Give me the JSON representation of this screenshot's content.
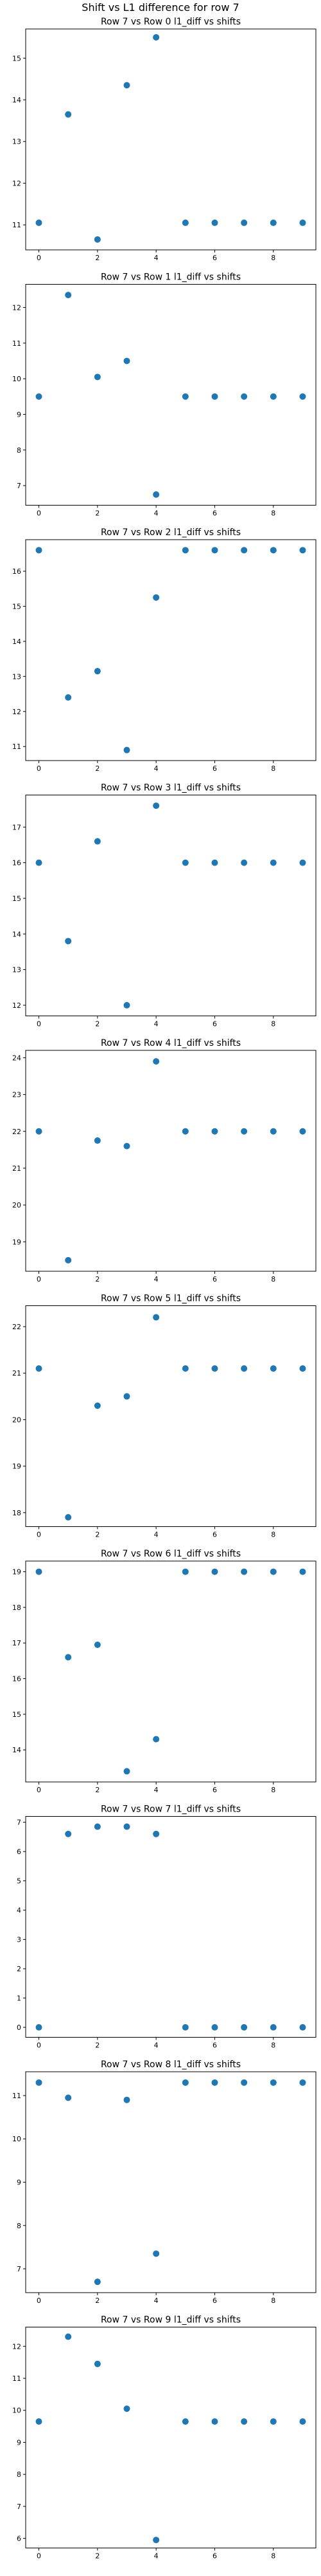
{
  "figure_title": "Shift vs L1 difference for row 7",
  "colors": {
    "point": "#1f77b4",
    "axis": "#000000",
    "background": "#ffffff"
  },
  "chart_data": [
    {
      "type": "scatter",
      "title": "Row 7 vs Row 0 l1_diff vs shifts",
      "x": [
        0,
        1,
        2,
        3,
        4,
        5,
        6,
        7,
        8,
        9
      ],
      "y": [
        11.05,
        13.65,
        10.65,
        14.35,
        15.5,
        11.05,
        11.05,
        11.05,
        11.05,
        11.05
      ],
      "xlim": [
        -0.45,
        9.45
      ],
      "ylim": [
        10.4,
        15.7
      ],
      "xticks": [
        0,
        2,
        4,
        6,
        8
      ],
      "yticks": [
        11,
        12,
        13,
        14,
        15
      ],
      "grid": false
    },
    {
      "type": "scatter",
      "title": "Row 7 vs Row 1 l1_diff vs shifts",
      "x": [
        0,
        1,
        2,
        3,
        4,
        5,
        6,
        7,
        8,
        9
      ],
      "y": [
        9.5,
        12.35,
        10.05,
        10.5,
        6.75,
        9.5,
        9.5,
        9.5,
        9.5,
        9.5
      ],
      "xlim": [
        -0.45,
        9.45
      ],
      "ylim": [
        6.45,
        12.65
      ],
      "xticks": [
        0,
        2,
        4,
        6,
        8
      ],
      "yticks": [
        7,
        8,
        9,
        10,
        11,
        12
      ],
      "grid": false
    },
    {
      "type": "scatter",
      "title": "Row 7 vs Row 2 l1_diff vs shifts",
      "x": [
        0,
        1,
        2,
        3,
        4,
        5,
        6,
        7,
        8,
        9
      ],
      "y": [
        16.6,
        12.4,
        13.15,
        10.9,
        15.25,
        16.6,
        16.6,
        16.6,
        16.6,
        16.6
      ],
      "xlim": [
        -0.45,
        9.45
      ],
      "ylim": [
        10.6,
        16.9
      ],
      "xticks": [
        0,
        2,
        4,
        6,
        8
      ],
      "yticks": [
        11,
        12,
        13,
        14,
        15,
        16
      ],
      "grid": false
    },
    {
      "type": "scatter",
      "title": "Row 7 vs Row 3 l1_diff vs shifts",
      "x": [
        0,
        1,
        2,
        3,
        4,
        5,
        6,
        7,
        8,
        9
      ],
      "y": [
        16.0,
        13.8,
        16.6,
        12.0,
        17.6,
        16.0,
        16.0,
        16.0,
        16.0,
        16.0
      ],
      "xlim": [
        -0.45,
        9.45
      ],
      "ylim": [
        11.7,
        17.9
      ],
      "xticks": [
        0,
        2,
        4,
        6,
        8
      ],
      "yticks": [
        12,
        13,
        14,
        15,
        16,
        17
      ],
      "grid": false
    },
    {
      "type": "scatter",
      "title": "Row 7 vs Row 4 l1_diff vs shifts",
      "x": [
        0,
        1,
        2,
        3,
        4,
        5,
        6,
        7,
        8,
        9
      ],
      "y": [
        22.0,
        18.5,
        21.75,
        21.6,
        23.9,
        22.0,
        22.0,
        22.0,
        22.0,
        22.0
      ],
      "xlim": [
        -0.45,
        9.45
      ],
      "ylim": [
        18.2,
        24.2
      ],
      "xticks": [
        0,
        2,
        4,
        6,
        8
      ],
      "yticks": [
        19,
        20,
        21,
        22,
        23,
        24
      ],
      "grid": false
    },
    {
      "type": "scatter",
      "title": "Row 7 vs Row 5 l1_diff vs shifts",
      "x": [
        0,
        1,
        2,
        3,
        4,
        5,
        6,
        7,
        8,
        9
      ],
      "y": [
        21.1,
        17.9,
        20.3,
        20.5,
        22.2,
        21.1,
        21.1,
        21.1,
        21.1,
        21.1
      ],
      "xlim": [
        -0.45,
        9.45
      ],
      "ylim": [
        17.7,
        22.45
      ],
      "xticks": [
        0,
        2,
        4,
        6,
        8
      ],
      "yticks": [
        18,
        19,
        20,
        21,
        22
      ],
      "grid": false
    },
    {
      "type": "scatter",
      "title": "Row 7 vs Row 6 l1_diff vs shifts",
      "x": [
        0,
        1,
        2,
        3,
        4,
        5,
        6,
        7,
        8,
        9
      ],
      "y": [
        19.0,
        16.6,
        16.95,
        13.4,
        14.3,
        19.0,
        19.0,
        19.0,
        19.0,
        19.0
      ],
      "xlim": [
        -0.45,
        9.45
      ],
      "ylim": [
        13.1,
        19.3
      ],
      "xticks": [
        0,
        2,
        4,
        6,
        8
      ],
      "yticks": [
        14,
        15,
        16,
        17,
        18,
        19
      ],
      "grid": false
    },
    {
      "type": "scatter",
      "title": "Row 7 vs Row 7 l1_diff vs shifts",
      "x": [
        0,
        1,
        2,
        3,
        4,
        5,
        6,
        7,
        8,
        9
      ],
      "y": [
        0.0,
        6.6,
        6.85,
        6.85,
        6.6,
        0.0,
        0.0,
        0.0,
        0.0,
        0.0
      ],
      "xlim": [
        -0.45,
        9.45
      ],
      "ylim": [
        -0.34,
        7.2
      ],
      "xticks": [
        0,
        2,
        4,
        6,
        8
      ],
      "yticks": [
        0,
        1,
        2,
        3,
        4,
        5,
        6,
        7
      ],
      "grid": false
    },
    {
      "type": "scatter",
      "title": "Row 7 vs Row 8 l1_diff vs shifts",
      "x": [
        0,
        1,
        2,
        3,
        4,
        5,
        6,
        7,
        8,
        9
      ],
      "y": [
        11.3,
        10.95,
        6.7,
        10.9,
        7.35,
        11.3,
        11.3,
        11.3,
        11.3,
        11.3
      ],
      "xlim": [
        -0.45,
        9.45
      ],
      "ylim": [
        6.45,
        11.55
      ],
      "xticks": [
        0,
        2,
        4,
        6,
        8
      ],
      "yticks": [
        7,
        8,
        9,
        10,
        11
      ],
      "grid": false
    },
    {
      "type": "scatter",
      "title": "Row 7 vs Row 9 l1_diff vs shifts",
      "x": [
        0,
        1,
        2,
        3,
        4,
        5,
        6,
        7,
        8,
        9
      ],
      "y": [
        9.65,
        12.3,
        11.45,
        10.05,
        5.95,
        9.65,
        9.65,
        9.65,
        9.65,
        9.65
      ],
      "xlim": [
        -0.45,
        9.45
      ],
      "ylim": [
        5.7,
        12.6
      ],
      "xticks": [
        0,
        2,
        4,
        6,
        8
      ],
      "yticks": [
        6,
        7,
        8,
        9,
        10,
        11,
        12
      ],
      "grid": false
    }
  ]
}
